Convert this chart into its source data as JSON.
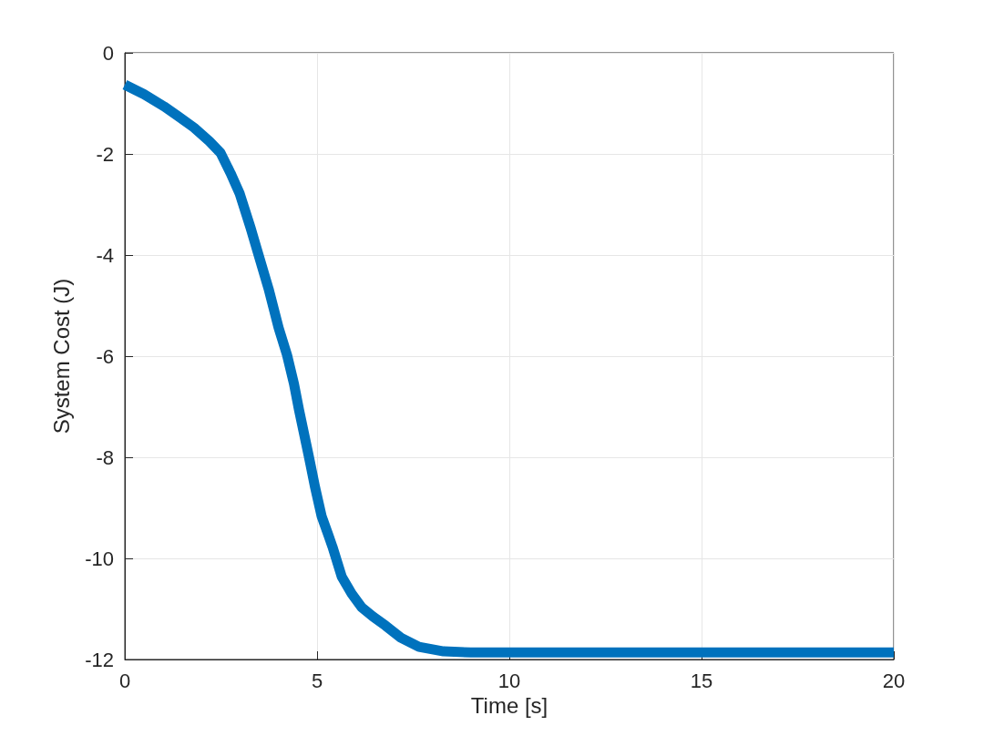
{
  "chart_data": {
    "type": "line",
    "xlabel": "Time [s]",
    "ylabel": "System Cost (J)",
    "x": [
      0,
      0.5,
      1.02,
      1.4,
      1.8,
      2.2,
      2.49,
      2.75,
      2.99,
      3.27,
      3.46,
      3.74,
      4.0,
      4.22,
      4.4,
      4.53,
      4.78,
      4.95,
      5.12,
      5.3,
      5.4,
      5.64,
      5.9,
      6.16,
      6.45,
      6.78,
      7.18,
      7.65,
      8.29,
      9,
      10,
      12,
      14,
      16,
      18,
      20
    ],
    "series": [
      {
        "color": "#0072bd",
        "values": [
          -0.63,
          -0.82,
          -1.06,
          -1.26,
          -1.48,
          -1.75,
          -1.98,
          -2.38,
          -2.79,
          -3.46,
          -3.95,
          -4.67,
          -5.44,
          -5.98,
          -6.55,
          -7.06,
          -7.96,
          -8.6,
          -9.17,
          -9.55,
          -9.77,
          -10.36,
          -10.7,
          -10.97,
          -11.15,
          -11.33,
          -11.57,
          -11.75,
          -11.84,
          -11.86,
          -11.86,
          -11.86,
          -11.86,
          -11.86,
          -11.86,
          -11.86
        ]
      }
    ],
    "xlim": [
      0,
      20
    ],
    "xticks": [
      0,
      5,
      10,
      15,
      20
    ],
    "ylim": [
      -12,
      0
    ],
    "yticks": [
      -12,
      -10,
      -8,
      -6,
      -4,
      -2,
      0
    ],
    "grid": true,
    "marker": "none",
    "line_style": "solid"
  }
}
